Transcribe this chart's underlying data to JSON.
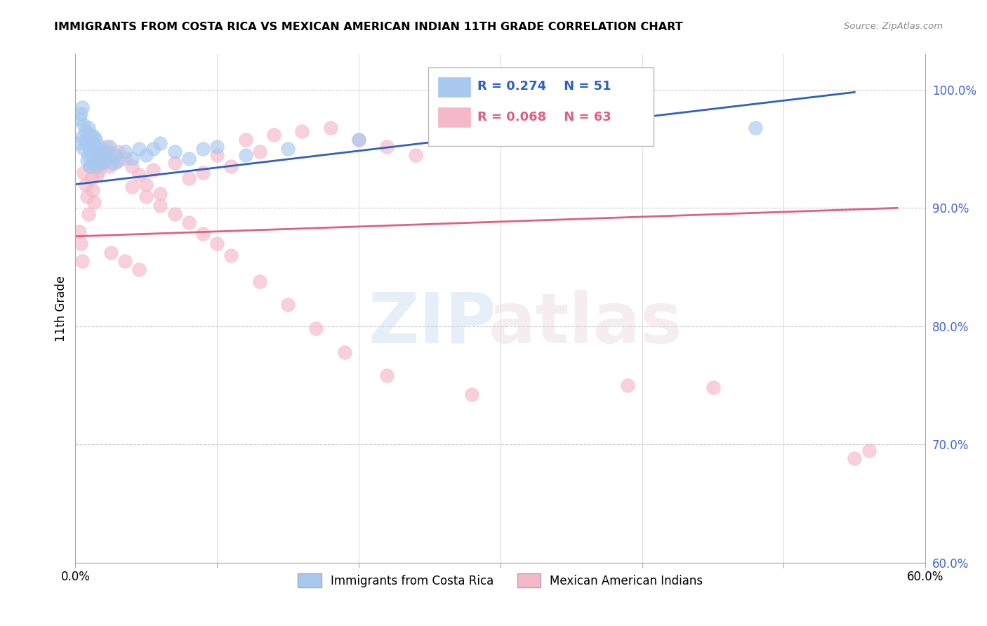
{
  "title": "IMMIGRANTS FROM COSTA RICA VS MEXICAN AMERICAN INDIAN 11TH GRADE CORRELATION CHART",
  "source": "Source: ZipAtlas.com",
  "ylabel": "11th Grade",
  "legend_label_blue": "Immigrants from Costa Rica",
  "legend_label_pink": "Mexican American Indians",
  "R_blue": 0.274,
  "N_blue": 51,
  "R_pink": 0.068,
  "N_pink": 63,
  "xlim": [
    0.0,
    0.6
  ],
  "ylim": [
    0.6,
    1.03
  ],
  "right_yticks": [
    1.0,
    0.9,
    0.8,
    0.7,
    0.6
  ],
  "right_yticklabels": [
    "100.0%",
    "90.0%",
    "80.0%",
    "70.0%",
    "60.0%"
  ],
  "xticks": [
    0.0,
    0.1,
    0.2,
    0.3,
    0.4,
    0.5,
    0.6
  ],
  "xticklabels": [
    "0.0%",
    "",
    "",
    "",
    "",
    "",
    "60.0%"
  ],
  "blue_color": "#A8C8F0",
  "pink_color": "#F5B8C8",
  "blue_line_color": "#3060C0",
  "pink_line_color": "#E06080",
  "grid_color": "#CCCCCC",
  "title_color": "#000000",
  "right_tick_color": "#4466CC",
  "blue_scatter_x": [
    0.002,
    0.003,
    0.004,
    0.005,
    0.005,
    0.006,
    0.006,
    0.007,
    0.007,
    0.008,
    0.008,
    0.009,
    0.009,
    0.01,
    0.01,
    0.011,
    0.011,
    0.012,
    0.012,
    0.013,
    0.013,
    0.014,
    0.015,
    0.015,
    0.016,
    0.017,
    0.018,
    0.019,
    0.02,
    0.021,
    0.022,
    0.024,
    0.026,
    0.028,
    0.03,
    0.035,
    0.04,
    0.045,
    0.05,
    0.055,
    0.06,
    0.07,
    0.08,
    0.09,
    0.1,
    0.12,
    0.15,
    0.2,
    0.28,
    0.38,
    0.48
  ],
  "blue_scatter_y": [
    0.955,
    0.975,
    0.98,
    0.985,
    0.96,
    0.97,
    0.95,
    0.955,
    0.965,
    0.94,
    0.958,
    0.945,
    0.968,
    0.935,
    0.95,
    0.948,
    0.962,
    0.938,
    0.955,
    0.942,
    0.96,
    0.958,
    0.935,
    0.948,
    0.942,
    0.952,
    0.946,
    0.938,
    0.945,
    0.94,
    0.948,
    0.952,
    0.938,
    0.945,
    0.94,
    0.948,
    0.942,
    0.95,
    0.945,
    0.95,
    0.955,
    0.948,
    0.942,
    0.95,
    0.952,
    0.945,
    0.95,
    0.958,
    0.96,
    0.965,
    0.968
  ],
  "pink_scatter_x": [
    0.003,
    0.004,
    0.005,
    0.006,
    0.007,
    0.008,
    0.009,
    0.01,
    0.011,
    0.012,
    0.013,
    0.014,
    0.015,
    0.016,
    0.017,
    0.018,
    0.019,
    0.02,
    0.022,
    0.024,
    0.026,
    0.028,
    0.03,
    0.035,
    0.04,
    0.045,
    0.05,
    0.055,
    0.06,
    0.07,
    0.08,
    0.09,
    0.1,
    0.11,
    0.12,
    0.13,
    0.14,
    0.16,
    0.18,
    0.2,
    0.22,
    0.24,
    0.04,
    0.05,
    0.06,
    0.07,
    0.08,
    0.09,
    0.1,
    0.11,
    0.13,
    0.15,
    0.17,
    0.19,
    0.22,
    0.28,
    0.39,
    0.45,
    0.55,
    0.56,
    0.025,
    0.035,
    0.045
  ],
  "pink_scatter_y": [
    0.88,
    0.87,
    0.855,
    0.93,
    0.92,
    0.91,
    0.895,
    0.935,
    0.925,
    0.915,
    0.905,
    0.938,
    0.928,
    0.942,
    0.932,
    0.948,
    0.938,
    0.945,
    0.952,
    0.935,
    0.945,
    0.938,
    0.948,
    0.942,
    0.935,
    0.928,
    0.92,
    0.932,
    0.912,
    0.938,
    0.925,
    0.93,
    0.945,
    0.935,
    0.958,
    0.948,
    0.962,
    0.965,
    0.968,
    0.958,
    0.952,
    0.945,
    0.918,
    0.91,
    0.902,
    0.895,
    0.888,
    0.878,
    0.87,
    0.86,
    0.838,
    0.818,
    0.798,
    0.778,
    0.758,
    0.742,
    0.75,
    0.748,
    0.688,
    0.695,
    0.862,
    0.855,
    0.848
  ]
}
